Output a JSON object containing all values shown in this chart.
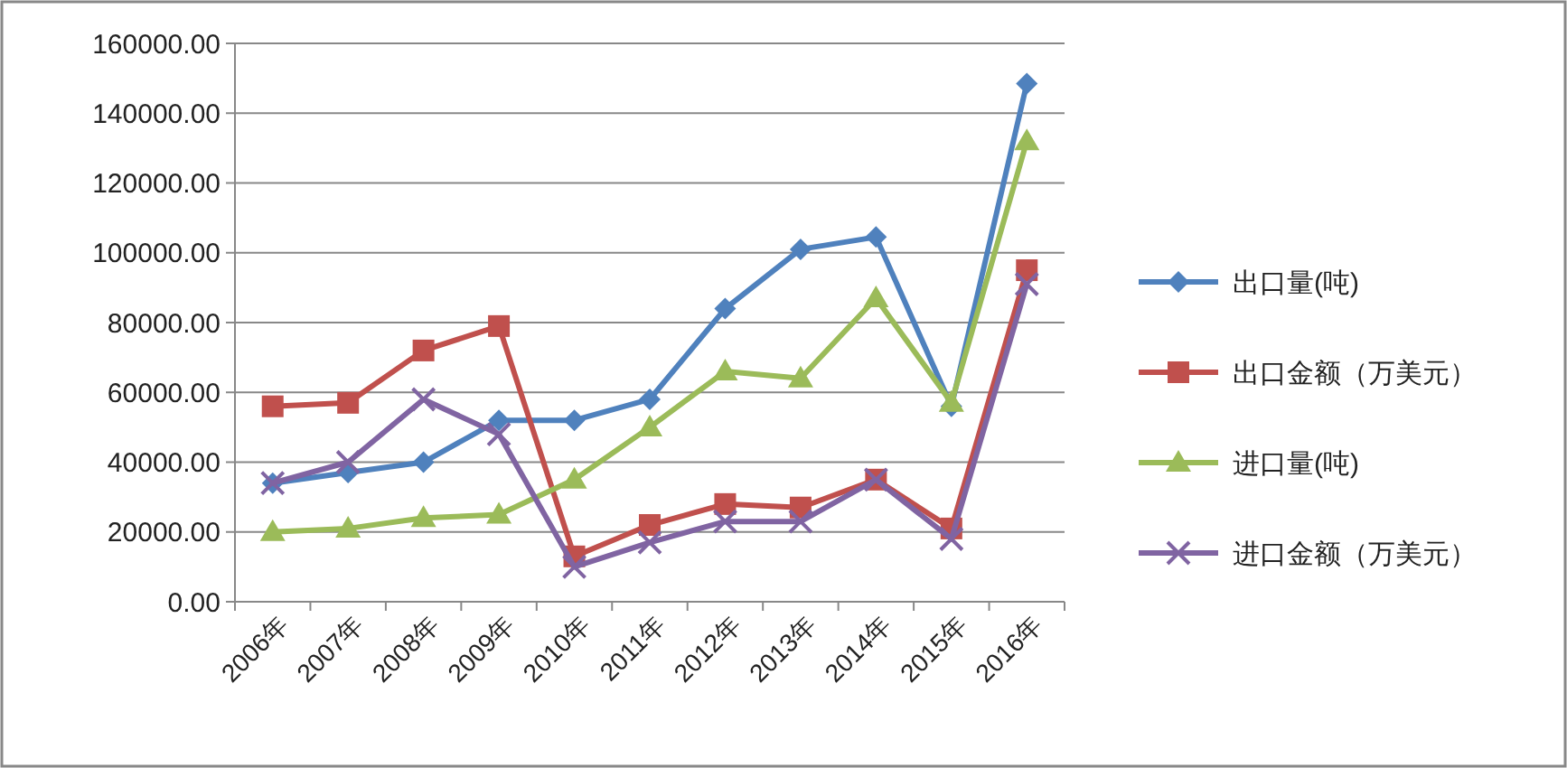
{
  "chart_data": {
    "type": "line",
    "categories": [
      "2006年",
      "2007年",
      "2008年",
      "2009年",
      "2010年",
      "2011年",
      "2012年",
      "2013年",
      "2014年",
      "2015年",
      "2016年"
    ],
    "series": [
      {
        "name": "出口量(吨)",
        "color": "#4f81bd",
        "marker": "diamond",
        "values": [
          34000,
          37000,
          40000,
          52000,
          52000,
          58000,
          84000,
          101000,
          104500,
          56000,
          148500
        ]
      },
      {
        "name": "出口金额（万美元）",
        "color": "#c0504d",
        "marker": "square",
        "values": [
          56000,
          57000,
          72000,
          79000,
          13000,
          22000,
          28000,
          27000,
          35000,
          21000,
          95000
        ]
      },
      {
        "name": "进口量(吨)",
        "color": "#9bbb59",
        "marker": "triangle",
        "values": [
          20000,
          21000,
          24000,
          25000,
          35000,
          50000,
          66000,
          64000,
          87000,
          57000,
          132000
        ]
      },
      {
        "name": "进口金额（万美元）",
        "color": "#8064a2",
        "marker": "cross",
        "values": [
          34000,
          40000,
          58000,
          48000,
          10000,
          17000,
          23000,
          23000,
          35000,
          18000,
          91000
        ]
      }
    ],
    "ylim": [
      0,
      160000
    ],
    "yticks": [
      {
        "value": 0,
        "label": "0.00"
      },
      {
        "value": 20000,
        "label": "20000.00"
      },
      {
        "value": 40000,
        "label": "40000.00"
      },
      {
        "value": 60000,
        "label": "60000.00"
      },
      {
        "value": 80000,
        "label": "80000.00"
      },
      {
        "value": 100000,
        "label": "100000.00"
      },
      {
        "value": 120000,
        "label": "120000.00"
      },
      {
        "value": 140000,
        "label": "140000.00"
      },
      {
        "value": 160000,
        "label": "160000.00"
      }
    ],
    "grid": "y",
    "legend": "right"
  }
}
